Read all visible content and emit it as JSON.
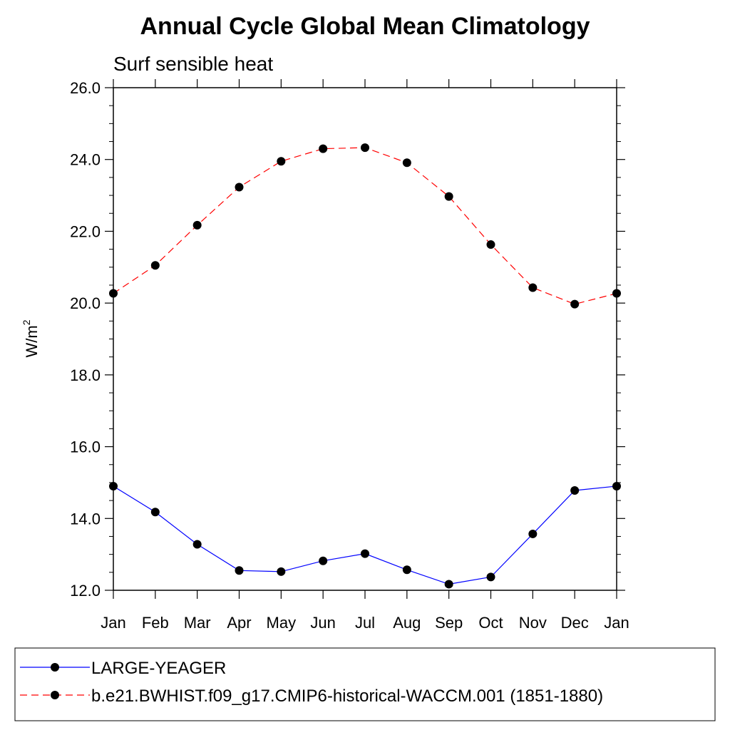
{
  "chart_data": {
    "type": "line",
    "title": "Annual Cycle Global Mean Climatology",
    "subtitle": "Surf sensible heat",
    "ylabel": "W/m",
    "ylabel_superscript": "2",
    "xlabel": "",
    "categories": [
      "Jan",
      "Feb",
      "Mar",
      "Apr",
      "May",
      "Jun",
      "Jul",
      "Aug",
      "Sep",
      "Oct",
      "Nov",
      "Dec",
      "Jan"
    ],
    "ylim": [
      12.0,
      26.0
    ],
    "yticks": [
      "12.0",
      "14.0",
      "16.0",
      "18.0",
      "20.0",
      "22.0",
      "24.0",
      "26.0"
    ],
    "yticks_values": [
      12.0,
      14.0,
      16.0,
      18.0,
      20.0,
      22.0,
      24.0,
      26.0
    ],
    "grid": false,
    "legend_position": "bottom",
    "series": [
      {
        "name": "LARGE-YEAGER",
        "color": "#0000ff",
        "dash": "solid",
        "values": [
          14.9,
          14.18,
          13.28,
          12.55,
          12.52,
          12.82,
          13.02,
          12.57,
          12.17,
          12.37,
          13.57,
          14.78,
          14.9
        ]
      },
      {
        "name": "b.e21.BWHIST.f09_g17.CMIP6-historical-WACCM.001 (1851-1880)",
        "color": "#ff0000",
        "dash": "dashed",
        "values": [
          20.27,
          21.05,
          22.17,
          23.23,
          23.95,
          24.3,
          24.33,
          23.91,
          22.97,
          21.63,
          20.43,
          19.97,
          20.27
        ]
      }
    ]
  }
}
